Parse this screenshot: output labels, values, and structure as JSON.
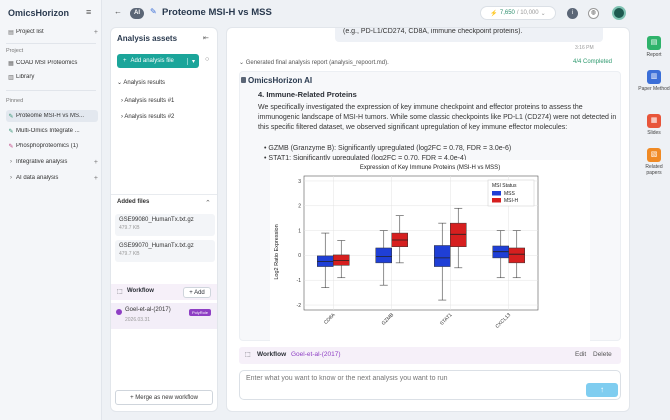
{
  "app": {
    "brand": "OmicsHorizon"
  },
  "sidebar": {
    "project_list": "Project list",
    "project_section": "Project",
    "projects": [
      {
        "label": "COAD MSI Proteomics",
        "icon": "grid-icon"
      },
      {
        "label": "Library",
        "icon": "book-icon"
      }
    ],
    "pinned_section": "Pinned",
    "pinned": [
      {
        "label": "Proteome MSI-H vs MS...",
        "icon": "edit-icon",
        "color": "#2f8f6f"
      },
      {
        "label": "Multi-Omics Integrate ...",
        "icon": "edit-icon",
        "color": "#2f8f6f"
      },
      {
        "label": "Phosphoproteomics (1)",
        "icon": "edit-icon",
        "color": "#c04080"
      }
    ],
    "groups": [
      {
        "label": "Integrative analysis"
      },
      {
        "label": "AI data analysis"
      }
    ]
  },
  "header": {
    "ai_badge": "AI",
    "title": "Proteome MSI-H vs MSS",
    "credits_used": "7,650",
    "credits_total": "/ 10,000"
  },
  "assets": {
    "title": "Analysis assets",
    "add_label": "Add analysis file",
    "results_root": "Analysis results",
    "results": [
      "Analysis results #1",
      "Analysis results #2"
    ],
    "added_files_title": "Added files",
    "files": [
      {
        "name": "GSE99080_HumanTx.txt.gz",
        "size": "479.7 KB"
      },
      {
        "name": "GSE99070_HumanTx.txt.gz",
        "size": "479.7 KB"
      }
    ],
    "workflow_title": "Workflow",
    "workflow_add": "Add",
    "workflow_item": {
      "name": "Goel-et-al-(2017)",
      "date": "2026.03.31",
      "tag": "PolyRole"
    },
    "merge_label": "Merge as new workflow"
  },
  "chat": {
    "user_message": "(e.g., PD-L1/CD274, CD8A, immune checkpoint proteins).",
    "user_time": "3:16 PM",
    "report_label": "Generated final analysis report (analysis_repoort.md).",
    "report_status": "4/4 Completed",
    "ai_name": "OmicsHorizon AI",
    "section_heading": "4. Immune-Related Proteins",
    "paragraph": "We specifically investigated the expression of key immune checkpoint and effector proteins to assess the immunogenic landscape of MSI-H tumors. While some classic checkpoints like PD-L1 (CD274) were not detected in this specific filtered dataset, we observed significant upregulation of key immune effector molecules:",
    "bullets": [
      "GZMB (Granzyme B): Significantly upregulated (log2FC = 0.78, FDR = 3.0e-6)",
      "STAT1: Significantly upregulated (log2FC = 0.70, FDR = 4.0e-4)"
    ],
    "workflow_bar": {
      "label": "Workflow",
      "name": "Goel-et-al-(2017)",
      "edit": "Edit",
      "delete": "Delete"
    },
    "input_placeholder": "Enter what you want to know or the next analysis you want to run"
  },
  "chart_data": {
    "type": "box",
    "title": "Expression of Key Immune Proteins (MSI-H vs MSS)",
    "xlabel": "",
    "ylabel": "Log2 Ratio Expression",
    "legend_title": "MSI Status",
    "legend_position": "top-right",
    "categories": [
      "CD8A",
      "GZMB",
      "STAT1",
      "CXCL13"
    ],
    "series": [
      {
        "name": "MSS",
        "color": "#1f3fd6",
        "boxes": [
          {
            "q1": -0.45,
            "median": -0.25,
            "q3": -0.02,
            "wlow": -1.3,
            "whigh": 0.9
          },
          {
            "q1": -0.3,
            "median": -0.05,
            "q3": 0.3,
            "wlow": -1.2,
            "whigh": 1.0
          },
          {
            "q1": -0.45,
            "median": -0.1,
            "q3": 0.4,
            "wlow": -1.8,
            "whigh": 1.3
          },
          {
            "q1": -0.1,
            "median": 0.15,
            "q3": 0.38,
            "wlow": -0.9,
            "whigh": 1.0
          }
        ]
      },
      {
        "name": "MSI-H",
        "color": "#d61f1f",
        "boxes": [
          {
            "q1": -0.4,
            "median": -0.2,
            "q3": 0.02,
            "wlow": -0.9,
            "whigh": 0.6
          },
          {
            "q1": 0.35,
            "median": 0.62,
            "q3": 0.9,
            "wlow": -0.3,
            "whigh": 1.6
          },
          {
            "q1": 0.35,
            "median": 0.85,
            "q3": 1.3,
            "wlow": -0.5,
            "whigh": 1.9
          },
          {
            "q1": -0.3,
            "median": 0.05,
            "q3": 0.3,
            "wlow": -0.9,
            "whigh": 1.0
          }
        ]
      }
    ],
    "ylim": [
      -2.2,
      3.2
    ],
    "grid": true
  },
  "rail": [
    {
      "label": "Report",
      "icon": "report-icon",
      "color": "#2fb36b"
    },
    {
      "label": "Paper Method",
      "icon": "paper-icon",
      "color": "#3b6fd8"
    },
    {
      "label": "Slides",
      "icon": "slides-icon",
      "color": "#e8553a"
    },
    {
      "label": "Related papers",
      "icon": "papers-icon",
      "color": "#f08a24"
    }
  ]
}
